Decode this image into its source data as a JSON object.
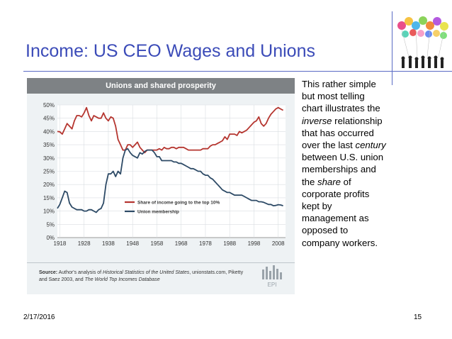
{
  "slide": {
    "title": "Income: US CEO Wages and Unions",
    "date": "2/17/2016",
    "page_number": "15"
  },
  "side_text": {
    "p1": "This rather simple but most telling chart illustrates the ",
    "em1": "inverse",
    "p2": " relationship that has occurred over the last ",
    "em2": "century",
    "p3": " between U.S. union memberships and the ",
    "em3": "share",
    "p4": " of corporate profits kept by management as opposed to company workers."
  },
  "source": {
    "label": "Source:",
    "text1": " Author's analysis of ",
    "italic1": "Historical Statistics of the United States",
    "text2": ", unionstats.com, Piketty and Saez 2003, and ",
    "italic2": "The World Top Incomes Database"
  },
  "logo_text": "EPI",
  "chart_data": {
    "type": "line",
    "title": "Unions and shared prosperity",
    "xlim": [
      1917,
      2011
    ],
    "ylim": [
      0,
      50
    ],
    "x_ticks": [
      1918,
      1928,
      1938,
      1948,
      1958,
      1968,
      1978,
      1988,
      1998,
      2008
    ],
    "y_ticks": [
      {
        "v": 0,
        "label": "0%"
      },
      {
        "v": 5,
        "label": "5%"
      },
      {
        "v": 10,
        "label": "10%"
      },
      {
        "v": 15,
        "label": "15%"
      },
      {
        "v": 20,
        "label": "20%"
      },
      {
        "v": 25,
        "label": "25%"
      },
      {
        "v": 30,
        "label": "30%"
      },
      {
        "v": 35,
        "label": "35%"
      },
      {
        "v": 40,
        "label": "40%"
      },
      {
        "v": 45,
        "label": "45%"
      },
      {
        "v": 50,
        "label": "50%"
      }
    ],
    "grid": true,
    "legend_position": "lower-middle",
    "series": [
      {
        "name": "Share of income going to the top 10%",
        "color": "#b5352f",
        "points": [
          [
            1917,
            40
          ],
          [
            1918,
            39.9
          ],
          [
            1919,
            39
          ],
          [
            1920,
            41
          ],
          [
            1921,
            43
          ],
          [
            1922,
            42
          ],
          [
            1923,
            41
          ],
          [
            1924,
            44
          ],
          [
            1925,
            46
          ],
          [
            1926,
            46
          ],
          [
            1927,
            45.5
          ],
          [
            1928,
            47
          ],
          [
            1929,
            49
          ],
          [
            1930,
            46
          ],
          [
            1931,
            44
          ],
          [
            1932,
            46
          ],
          [
            1933,
            45.5
          ],
          [
            1934,
            45
          ],
          [
            1935,
            45
          ],
          [
            1936,
            47
          ],
          [
            1937,
            45
          ],
          [
            1938,
            44
          ],
          [
            1939,
            45.5
          ],
          [
            1940,
            45
          ],
          [
            1941,
            42
          ],
          [
            1942,
            37
          ],
          [
            1943,
            35
          ],
          [
            1944,
            33
          ],
          [
            1945,
            33
          ],
          [
            1946,
            35
          ],
          [
            1947,
            35
          ],
          [
            1948,
            34
          ],
          [
            1949,
            35
          ],
          [
            1950,
            36
          ],
          [
            1951,
            34
          ],
          [
            1952,
            33
          ],
          [
            1953,
            32
          ],
          [
            1954,
            33
          ],
          [
            1955,
            33
          ],
          [
            1956,
            33
          ],
          [
            1957,
            33
          ],
          [
            1958,
            33
          ],
          [
            1959,
            33.5
          ],
          [
            1960,
            33
          ],
          [
            1961,
            34
          ],
          [
            1962,
            33.5
          ],
          [
            1963,
            33.5
          ],
          [
            1964,
            34
          ],
          [
            1965,
            34
          ],
          [
            1966,
            33.5
          ],
          [
            1967,
            34
          ],
          [
            1968,
            34
          ],
          [
            1969,
            34
          ],
          [
            1970,
            33.5
          ],
          [
            1971,
            33
          ],
          [
            1972,
            33
          ],
          [
            1973,
            33
          ],
          [
            1974,
            33
          ],
          [
            1975,
            33
          ],
          [
            1976,
            33
          ],
          [
            1977,
            33.5
          ],
          [
            1978,
            33.5
          ],
          [
            1979,
            33.5
          ],
          [
            1980,
            34.5
          ],
          [
            1981,
            35
          ],
          [
            1982,
            35
          ],
          [
            1983,
            35.5
          ],
          [
            1984,
            36
          ],
          [
            1985,
            36.5
          ],
          [
            1986,
            38
          ],
          [
            1987,
            37
          ],
          [
            1988,
            39
          ],
          [
            1989,
            39
          ],
          [
            1990,
            39
          ],
          [
            1991,
            38.5
          ],
          [
            1992,
            40
          ],
          [
            1993,
            39.5
          ],
          [
            1994,
            40
          ],
          [
            1995,
            40.5
          ],
          [
            1996,
            41.5
          ],
          [
            1997,
            42.5
          ],
          [
            1998,
            43.5
          ],
          [
            1999,
            44
          ],
          [
            2000,
            45.5
          ],
          [
            2001,
            43
          ],
          [
            2002,
            42
          ],
          [
            2003,
            43
          ],
          [
            2004,
            45
          ],
          [
            2005,
            46.5
          ],
          [
            2006,
            47.5
          ],
          [
            2007,
            48.5
          ],
          [
            2008,
            49
          ],
          [
            2009,
            48.5
          ],
          [
            2010,
            48
          ]
        ]
      },
      {
        "name": "Union membership",
        "color": "#2d4a66",
        "points": [
          [
            1917,
            11
          ],
          [
            1918,
            12.5
          ],
          [
            1919,
            15
          ],
          [
            1920,
            17.5
          ],
          [
            1921,
            17
          ],
          [
            1922,
            13
          ],
          [
            1923,
            11.5
          ],
          [
            1924,
            11
          ],
          [
            1925,
            10.5
          ],
          [
            1926,
            10.5
          ],
          [
            1927,
            10.5
          ],
          [
            1928,
            10
          ],
          [
            1929,
            10
          ],
          [
            1930,
            10.5
          ],
          [
            1931,
            10.5
          ],
          [
            1932,
            10
          ],
          [
            1933,
            9.5
          ],
          [
            1934,
            10.5
          ],
          [
            1935,
            11
          ],
          [
            1936,
            13
          ],
          [
            1937,
            20
          ],
          [
            1938,
            24
          ],
          [
            1939,
            24
          ],
          [
            1940,
            25
          ],
          [
            1941,
            23
          ],
          [
            1942,
            25
          ],
          [
            1943,
            24
          ],
          [
            1944,
            30
          ],
          [
            1945,
            33
          ],
          [
            1946,
            33.5
          ],
          [
            1947,
            32
          ],
          [
            1948,
            31
          ],
          [
            1949,
            30.5
          ],
          [
            1950,
            30
          ],
          [
            1951,
            32
          ],
          [
            1952,
            31.5
          ],
          [
            1953,
            32.5
          ],
          [
            1954,
            33
          ],
          [
            1955,
            33
          ],
          [
            1956,
            33
          ],
          [
            1957,
            32
          ],
          [
            1958,
            30.5
          ],
          [
            1959,
            30.5
          ],
          [
            1960,
            29
          ],
          [
            1961,
            29
          ],
          [
            1962,
            29
          ],
          [
            1963,
            29
          ],
          [
            1964,
            29
          ],
          [
            1965,
            28.5
          ],
          [
            1966,
            28.5
          ],
          [
            1967,
            28
          ],
          [
            1968,
            28
          ],
          [
            1969,
            27.5
          ],
          [
            1970,
            27
          ],
          [
            1971,
            26.5
          ],
          [
            1972,
            26
          ],
          [
            1973,
            26
          ],
          [
            1974,
            25.5
          ],
          [
            1975,
            25
          ],
          [
            1976,
            25
          ],
          [
            1977,
            24
          ],
          [
            1978,
            23.5
          ],
          [
            1979,
            23.5
          ],
          [
            1980,
            22.5
          ],
          [
            1981,
            22
          ],
          [
            1982,
            21
          ],
          [
            1983,
            20
          ],
          [
            1984,
            19
          ],
          [
            1985,
            18
          ],
          [
            1986,
            17.5
          ],
          [
            1987,
            17
          ],
          [
            1988,
            17
          ],
          [
            1989,
            16.5
          ],
          [
            1990,
            16
          ],
          [
            1991,
            16
          ],
          [
            1992,
            16
          ],
          [
            1993,
            16
          ],
          [
            1994,
            15.5
          ],
          [
            1995,
            15
          ],
          [
            1996,
            14.5
          ],
          [
            1997,
            14
          ],
          [
            1998,
            14
          ],
          [
            1999,
            14
          ],
          [
            2000,
            13.5
          ],
          [
            2001,
            13.5
          ],
          [
            2002,
            13.3
          ],
          [
            2003,
            12.9
          ],
          [
            2004,
            12.5
          ],
          [
            2005,
            12.5
          ],
          [
            2006,
            12
          ],
          [
            2007,
            12.1
          ],
          [
            2008,
            12.4
          ],
          [
            2009,
            12.3
          ],
          [
            2010,
            12
          ]
        ]
      }
    ]
  }
}
